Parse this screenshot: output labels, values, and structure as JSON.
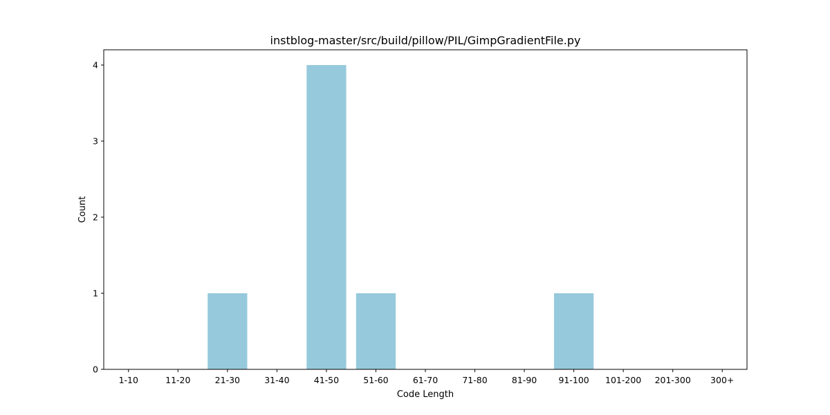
{
  "chart_data": {
    "type": "bar",
    "title": "instblog-master/src/build/pillow/PIL/GimpGradientFile.py",
    "xlabel": "Code Length",
    "ylabel": "Count",
    "categories": [
      "1-10",
      "11-20",
      "21-30",
      "31-40",
      "41-50",
      "51-60",
      "61-70",
      "71-80",
      "81-90",
      "91-100",
      "101-200",
      "201-300",
      "300+"
    ],
    "values": [
      0,
      0,
      1,
      0,
      4,
      1,
      0,
      0,
      0,
      1,
      0,
      0,
      0
    ],
    "ylim": [
      0,
      4.2
    ],
    "yticks": [
      0,
      1,
      2,
      3,
      4
    ],
    "bar_color": "#96c9dc",
    "grid": false
  }
}
